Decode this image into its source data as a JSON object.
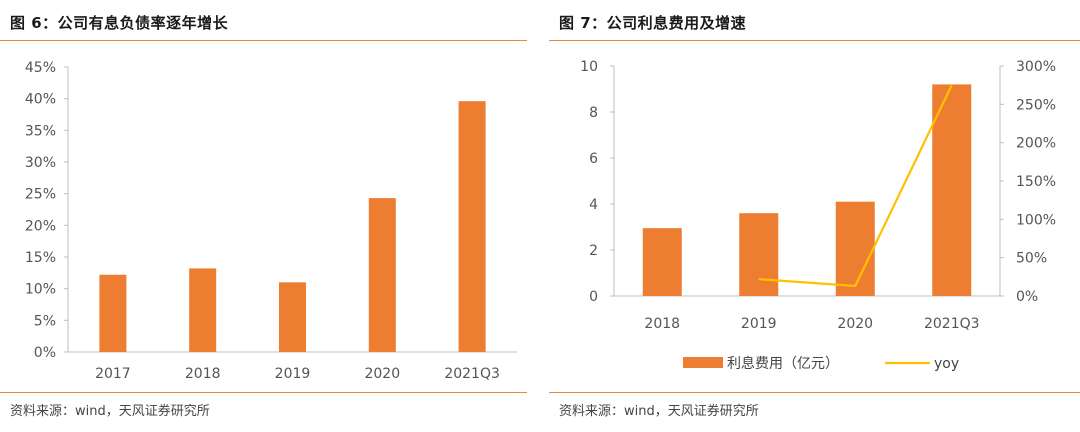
{
  "colors": {
    "bar": "#ED7D31",
    "line": "#FFC000",
    "rule": "#E58A3A",
    "axis": "#BFBFBF"
  },
  "left_panel": {
    "title": "图 6：公司有息负债率逐年增长",
    "source": "资料来源：wind，天风证券研究所"
  },
  "right_panel": {
    "title": "图 7：公司利息费用及增速",
    "source": "资料来源：wind，天风证券研究所"
  },
  "chart_data": [
    {
      "type": "bar",
      "categories": [
        "2017",
        "2018",
        "2019",
        "2020",
        "2021Q3"
      ],
      "values": [
        12.2,
        13.2,
        11.0,
        24.3,
        39.6
      ],
      "ylim": [
        0,
        45
      ],
      "yticks": [
        "0%",
        "5%",
        "10%",
        "15%",
        "20%",
        "25%",
        "30%",
        "35%",
        "40%",
        "45%"
      ],
      "grid": false
    },
    {
      "type": "bar",
      "categories": [
        "2018",
        "2019",
        "2020",
        "2021Q3"
      ],
      "series": [
        {
          "name": "利息费用（亿元）",
          "type": "bar",
          "axis": "left",
          "values": [
            2.95,
            3.6,
            4.1,
            9.2
          ]
        },
        {
          "name": "yoy",
          "type": "line",
          "axis": "right",
          "values": [
            null,
            22,
            13,
            275
          ]
        }
      ],
      "ylim": [
        0,
        10
      ],
      "yticks": [
        "0",
        "2",
        "4",
        "6",
        "8",
        "10"
      ],
      "y2lim": [
        0,
        300
      ],
      "y2ticks": [
        "0%",
        "50%",
        "100%",
        "150%",
        "200%",
        "250%",
        "300%"
      ],
      "legend_position": "bottom",
      "grid": false
    }
  ]
}
